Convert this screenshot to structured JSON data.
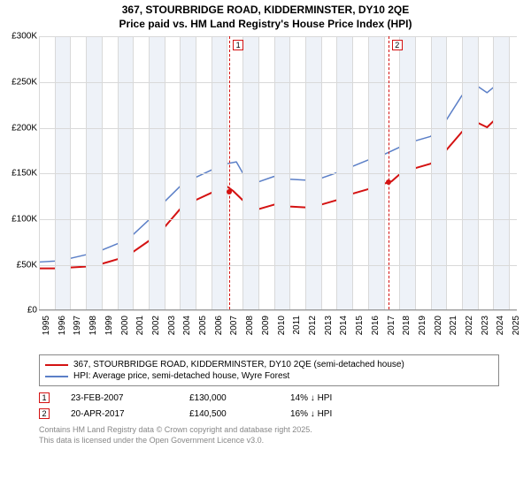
{
  "title_line1": "367, STOURBRIDGE ROAD, KIDDERMINSTER, DY10 2QE",
  "title_line2": "Price paid vs. HM Land Registry's House Price Index (HPI)",
  "chart": {
    "type": "line",
    "background_color": "#ffffff",
    "grid_color": "#d9d9d9",
    "alt_band_color": "#eef2f8",
    "axis_fontsize": 10,
    "x": {
      "min": 1995,
      "max": 2025.5,
      "ticks": [
        1995,
        1996,
        1997,
        1998,
        1999,
        2000,
        2001,
        2002,
        2003,
        2004,
        2005,
        2006,
        2007,
        2008,
        2009,
        2010,
        2011,
        2012,
        2013,
        2014,
        2015,
        2016,
        2017,
        2018,
        2019,
        2020,
        2021,
        2022,
        2023,
        2024,
        2025
      ]
    },
    "y": {
      "min": 0,
      "max": 300000,
      "ticks": [
        {
          "v": 0,
          "label": "£0"
        },
        {
          "v": 50000,
          "label": "£50K"
        },
        {
          "v": 100000,
          "label": "£100K"
        },
        {
          "v": 150000,
          "label": "£150K"
        },
        {
          "v": 200000,
          "label": "£200K"
        },
        {
          "v": 250000,
          "label": "£250K"
        },
        {
          "v": 300000,
          "label": "£300K"
        }
      ]
    },
    "series": [
      {
        "name": "price_paid",
        "label": "367, STOURBRIDGE ROAD, KIDDERMINSTER, DY10 2QE (semi-detached house)",
        "color": "#d41212",
        "width": 2,
        "data": [
          [
            1995,
            45000
          ],
          [
            1996,
            45000
          ],
          [
            1997,
            46000
          ],
          [
            1998,
            47000
          ],
          [
            1999,
            50000
          ],
          [
            2000,
            55000
          ],
          [
            2001,
            63000
          ],
          [
            2002,
            75000
          ],
          [
            2003,
            90000
          ],
          [
            2004,
            110000
          ],
          [
            2005,
            120000
          ],
          [
            2006,
            128000
          ],
          [
            2007,
            135000
          ],
          [
            2007.4,
            130000
          ],
          [
            2008,
            120000
          ],
          [
            2009,
            110000
          ],
          [
            2010,
            115000
          ],
          [
            2011,
            113000
          ],
          [
            2012,
            112000
          ],
          [
            2013,
            115000
          ],
          [
            2014,
            120000
          ],
          [
            2015,
            127000
          ],
          [
            2016,
            132000
          ],
          [
            2017,
            138000
          ],
          [
            2017.5,
            140500
          ],
          [
            2018,
            148000
          ],
          [
            2019,
            155000
          ],
          [
            2020,
            160000
          ],
          [
            2021,
            175000
          ],
          [
            2022,
            195000
          ],
          [
            2023,
            205000
          ],
          [
            2023.6,
            200000
          ],
          [
            2024.2,
            210000
          ],
          [
            2025,
            215000
          ]
        ]
      },
      {
        "name": "hpi",
        "label": "HPI: Average price, semi-detached house, Wyre Forest",
        "color": "#5b7fc7",
        "width": 1.5,
        "data": [
          [
            1995,
            52000
          ],
          [
            1996,
            53000
          ],
          [
            1997,
            56000
          ],
          [
            1998,
            60000
          ],
          [
            1999,
            65000
          ],
          [
            2000,
            72000
          ],
          [
            2001,
            82000
          ],
          [
            2002,
            98000
          ],
          [
            2003,
            118000
          ],
          [
            2004,
            135000
          ],
          [
            2005,
            145000
          ],
          [
            2006,
            153000
          ],
          [
            2007,
            160000
          ],
          [
            2007.6,
            162000
          ],
          [
            2008,
            150000
          ],
          [
            2009,
            140000
          ],
          [
            2010,
            146000
          ],
          [
            2011,
            143000
          ],
          [
            2012,
            142000
          ],
          [
            2013,
            144000
          ],
          [
            2014,
            150000
          ],
          [
            2015,
            157000
          ],
          [
            2016,
            164000
          ],
          [
            2017,
            170000
          ],
          [
            2018,
            178000
          ],
          [
            2019,
            185000
          ],
          [
            2020,
            190000
          ],
          [
            2021,
            208000
          ],
          [
            2022,
            235000
          ],
          [
            2023,
            245000
          ],
          [
            2023.6,
            238000
          ],
          [
            2024.3,
            248000
          ],
          [
            2025,
            252000
          ]
        ]
      }
    ],
    "sale_points": [
      {
        "n": "1",
        "year": 2007.15,
        "value": 130000,
        "color": "#d41212"
      },
      {
        "n": "2",
        "year": 2017.3,
        "value": 140500,
        "color": "#d41212"
      }
    ]
  },
  "legend": {
    "border_color": "#888888"
  },
  "sales": [
    {
      "n": "1",
      "date": "23-FEB-2007",
      "price": "£130,000",
      "delta": "14% ↓ HPI",
      "box_color": "#d41212"
    },
    {
      "n": "2",
      "date": "20-APR-2017",
      "price": "£140,500",
      "delta": "16% ↓ HPI",
      "box_color": "#d41212"
    }
  ],
  "footer_line1": "Contains HM Land Registry data © Crown copyright and database right 2025.",
  "footer_line2": "This data is licensed under the Open Government Licence v3.0."
}
